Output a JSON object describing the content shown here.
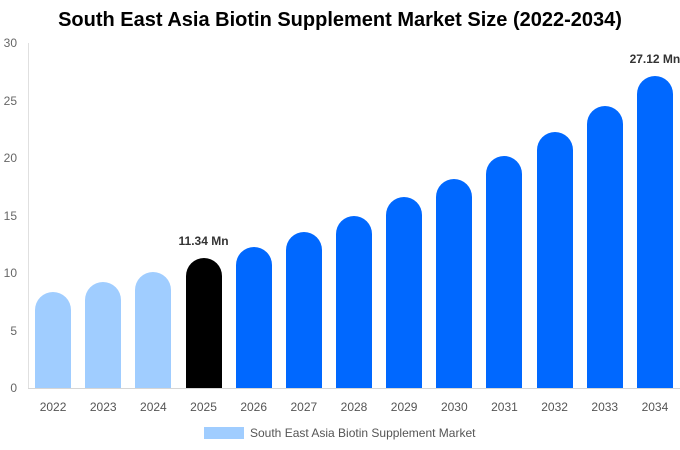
{
  "chart_data": {
    "type": "bar",
    "title": "South East Asia Biotin Supplement Market Size (2022-2034)",
    "xlabel": "",
    "ylabel": "",
    "ylim": [
      0,
      30
    ],
    "yticks": [
      0,
      5,
      10,
      15,
      20,
      25,
      30
    ],
    "grid": false,
    "legend_position": "bottom",
    "categories": [
      "2022",
      "2023",
      "2024",
      "2025",
      "2026",
      "2027",
      "2028",
      "2029",
      "2030",
      "2031",
      "2032",
      "2033",
      "2034"
    ],
    "series": [
      {
        "name": "South East Asia Biotin Supplement Market",
        "values": [
          8.35,
          9.2,
          10.1,
          11.34,
          12.3,
          13.6,
          15.0,
          16.6,
          18.2,
          20.2,
          22.3,
          24.5,
          27.12
        ]
      }
    ],
    "bar_colors": [
      "#a0cdff",
      "#a0cdff",
      "#a0cdff",
      "#000000",
      "#0068ff",
      "#0068ff",
      "#0068ff",
      "#0068ff",
      "#0068ff",
      "#0068ff",
      "#0068ff",
      "#0068ff",
      "#0068ff"
    ],
    "annotations": [
      {
        "category": "2025",
        "text": "11.34 Mn"
      },
      {
        "category": "2034",
        "text": "27.12 Mn"
      }
    ]
  },
  "legend": {
    "label": "South East Asia Biotin Supplement Market",
    "color": "#a0cdff"
  }
}
